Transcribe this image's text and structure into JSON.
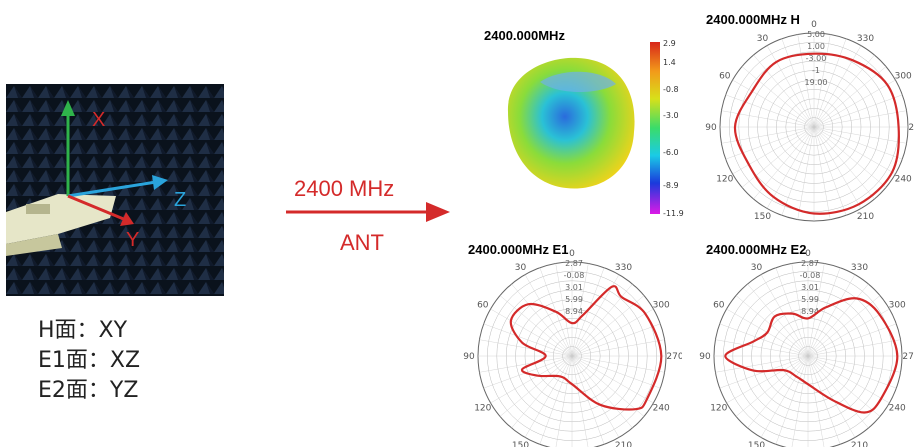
{
  "photo": {
    "axis_labels": {
      "x": "X",
      "y": "Y",
      "z": "Z"
    }
  },
  "plane_legend": [
    {
      "label": "H面：XY"
    },
    {
      "label": "E1面：XZ"
    },
    {
      "label": "E2面：YZ"
    }
  ],
  "arrow": {
    "top_label": "2400 MHz",
    "bottom_label": "ANT",
    "color": "#d42a2a"
  },
  "pattern_3d": {
    "title": "2400.000MHz",
    "colorbar_ticks": [
      "2.9",
      "1.4",
      "-0.8",
      "-3.0",
      "-6.0",
      "-8.9",
      "-11.9"
    ]
  },
  "polar_angle_labels": [
    "0",
    "30",
    "60",
    "90",
    "120",
    "150",
    "180",
    "210",
    "240",
    "270",
    "300",
    "330"
  ],
  "chart_data": [
    {
      "type": "polar",
      "title": "2400.000MHz  H",
      "ring_labels": [
        "5.00",
        "1.00",
        "-3.00",
        "-1",
        "19.00"
      ],
      "angles_deg": [
        0,
        30,
        60,
        90,
        120,
        150,
        180,
        210,
        240,
        270,
        300,
        330
      ],
      "r_norm": [
        0.78,
        0.8,
        0.76,
        0.84,
        0.8,
        0.86,
        0.92,
        0.95,
        0.96,
        0.9,
        0.9,
        0.82
      ]
    },
    {
      "type": "polar",
      "title": "2400.000MHz  E1",
      "ring_labels": [
        "2.87",
        "-0.08",
        "3.01",
        "5.99",
        "8.94"
      ],
      "angles_deg": [
        0,
        20,
        40,
        60,
        75,
        90,
        105,
        120,
        150,
        180,
        210,
        230,
        240,
        270,
        300,
        320,
        330,
        345
      ],
      "r_norm": [
        0.35,
        0.5,
        0.72,
        0.75,
        0.55,
        0.28,
        0.55,
        0.42,
        0.25,
        0.3,
        0.6,
        0.88,
        0.92,
        0.95,
        0.9,
        0.82,
        0.85,
        0.45
      ]
    },
    {
      "type": "polar",
      "title": "2400.000MHz  E2",
      "ring_labels": [
        "2.87",
        "-0.08",
        "3.01",
        "5.99",
        "8.94"
      ],
      "angles_deg": [
        0,
        20,
        40,
        60,
        75,
        90,
        105,
        120,
        150,
        180,
        210,
        225,
        240,
        270,
        300,
        320,
        340
      ],
      "r_norm": [
        0.4,
        0.48,
        0.55,
        0.5,
        0.6,
        0.88,
        0.6,
        0.3,
        0.25,
        0.3,
        0.55,
        0.85,
        0.9,
        0.95,
        0.88,
        0.8,
        0.55
      ]
    }
  ]
}
